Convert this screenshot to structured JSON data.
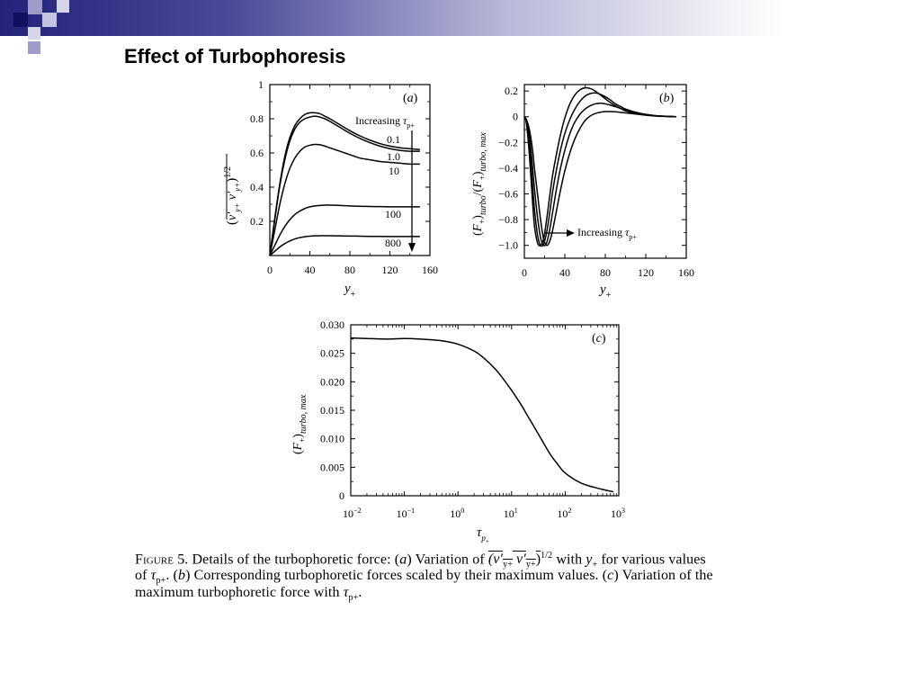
{
  "slide": {
    "title": "Effect of Turbophoresis"
  },
  "caption": {
    "figure_label": "Figure 5.",
    "line1_a": "Details of the turbophoretic force: (",
    "line1_b": "a",
    "line1_c": ") Variation of ",
    "line1_d": "(v′",
    "line1_e": "y+",
    "line1_f": " v′",
    "line1_g": "y+",
    "line1_h": ")",
    "line1_i": "1/2",
    "line1_j": " with ",
    "line1_k": "y",
    "line1_l": "+",
    "line1_m": " for various values",
    "line2_a": "of ",
    "line2_b": "τ",
    "line2_c": "p+",
    "line2_d": ". (",
    "line2_e": "b",
    "line2_f": ") Corresponding turbophoretic forces scaled by their maximum values. (",
    "line2_g": "c",
    "line2_h": ") Variation of the",
    "line3_a": "maximum turbophoretic force with ",
    "line3_b": "τ",
    "line3_c": "p+",
    "line3_d": "."
  },
  "chart_data": [
    {
      "type": "line",
      "panel": "(a)",
      "xlabel": "y+",
      "ylabel": "(v′y+ v′y+)^1/2",
      "xlim": [
        0,
        160
      ],
      "ylim": [
        0,
        1.0
      ],
      "xticks": [
        0,
        40,
        80,
        120,
        160
      ],
      "yticks": [
        0.2,
        0.4,
        0.6,
        0.8,
        1.0
      ],
      "x": [
        0,
        5,
        10,
        15,
        20,
        25,
        30,
        35,
        40,
        45,
        50,
        55,
        60,
        70,
        80,
        90,
        100,
        110,
        120,
        130,
        140,
        150
      ],
      "series": [
        {
          "name": "0.1",
          "values": [
            0,
            0.22,
            0.42,
            0.58,
            0.69,
            0.76,
            0.8,
            0.825,
            0.835,
            0.835,
            0.83,
            0.815,
            0.8,
            0.765,
            0.73,
            0.7,
            0.675,
            0.655,
            0.64,
            0.63,
            0.625,
            0.62
          ]
        },
        {
          "name": "1.0",
          "values": [
            0,
            0.21,
            0.41,
            0.56,
            0.67,
            0.74,
            0.78,
            0.8,
            0.81,
            0.815,
            0.81,
            0.8,
            0.785,
            0.75,
            0.715,
            0.685,
            0.66,
            0.64,
            0.625,
            0.615,
            0.61,
            0.61
          ]
        },
        {
          "name": "10",
          "values": [
            0,
            0.15,
            0.3,
            0.42,
            0.51,
            0.57,
            0.61,
            0.635,
            0.645,
            0.65,
            0.648,
            0.64,
            0.63,
            0.61,
            0.59,
            0.57,
            0.56,
            0.55,
            0.545,
            0.54,
            0.535,
            0.535
          ]
        },
        {
          "name": "100",
          "values": [
            0,
            0.06,
            0.12,
            0.17,
            0.21,
            0.24,
            0.26,
            0.275,
            0.285,
            0.29,
            0.293,
            0.295,
            0.295,
            0.293,
            0.29,
            0.288,
            0.287,
            0.286,
            0.285,
            0.285,
            0.285,
            0.285
          ]
        },
        {
          "name": "800",
          "values": [
            0,
            0.025,
            0.05,
            0.07,
            0.085,
            0.097,
            0.105,
            0.11,
            0.113,
            0.115,
            0.116,
            0.116,
            0.116,
            0.115,
            0.114,
            0.113,
            0.112,
            0.112,
            0.111,
            0.111,
            0.111,
            0.111
          ]
        }
      ],
      "annotation": "Increasing τp+",
      "annotation_symbol": "τ",
      "annotation_sub": "p+",
      "annotation_text": "Increasing "
    },
    {
      "type": "line",
      "panel": "(b)",
      "xlabel": "y+",
      "ylabel": "(F+)turbo/(F+)turbo, max",
      "xlim": [
        0,
        160
      ],
      "ylim": [
        -1.1,
        0.25
      ],
      "xticks": [
        0,
        40,
        80,
        120,
        160
      ],
      "yticks": [
        0.2,
        0,
        -0.2,
        -0.4,
        -0.6,
        -0.8,
        -1.0
      ],
      "ytick_labels": [
        "0.2",
        "0",
        "−0.2",
        "−0.4",
        "−0.6",
        "−0.8",
        "−1.0"
      ],
      "x": [
        0,
        2,
        5,
        8,
        10,
        13,
        16,
        19,
        22,
        25,
        28,
        32,
        36,
        40,
        45,
        50,
        55,
        60,
        65,
        70,
        75,
        80,
        85,
        90,
        95,
        100,
        110,
        120,
        130,
        140,
        150
      ],
      "series": [
        {
          "values": [
            0,
            -0.05,
            -0.3,
            -0.65,
            -0.85,
            -0.98,
            -1.0,
            -0.95,
            -0.8,
            -0.62,
            -0.45,
            -0.28,
            -0.13,
            -0.01,
            0.1,
            0.17,
            0.21,
            0.225,
            0.22,
            0.2,
            0.17,
            0.14,
            0.11,
            0.085,
            0.065,
            0.045,
            0.025,
            0.012,
            0.005,
            0.002,
            0
          ]
        },
        {
          "values": [
            0,
            -0.04,
            -0.22,
            -0.52,
            -0.72,
            -0.92,
            -1.0,
            -0.99,
            -0.9,
            -0.75,
            -0.58,
            -0.4,
            -0.25,
            -0.13,
            -0.02,
            0.06,
            0.12,
            0.16,
            0.18,
            0.185,
            0.175,
            0.155,
            0.13,
            0.1,
            0.08,
            0.06,
            0.035,
            0.018,
            0.008,
            0.003,
            0
          ]
        },
        {
          "values": [
            0,
            -0.03,
            -0.15,
            -0.38,
            -0.56,
            -0.78,
            -0.94,
            -1.0,
            -0.98,
            -0.88,
            -0.74,
            -0.55,
            -0.39,
            -0.26,
            -0.13,
            -0.04,
            0.02,
            0.06,
            0.085,
            0.1,
            0.105,
            0.1,
            0.09,
            0.078,
            0.065,
            0.052,
            0.032,
            0.018,
            0.008,
            0.003,
            0
          ]
        },
        {
          "values": [
            0,
            -0.02,
            -0.1,
            -0.25,
            -0.4,
            -0.6,
            -0.8,
            -0.95,
            -1.0,
            -0.97,
            -0.88,
            -0.72,
            -0.56,
            -0.42,
            -0.28,
            -0.17,
            -0.09,
            -0.03,
            0.005,
            0.025,
            0.035,
            0.04,
            0.04,
            0.038,
            0.034,
            0.03,
            0.021,
            0.013,
            0.007,
            0.003,
            0
          ]
        }
      ],
      "annotation": "Increasing τp+",
      "annotation_symbol": "τ",
      "annotation_sub": "p+",
      "annotation_text": "Increasing "
    },
    {
      "type": "line",
      "panel": "(c)",
      "xlabel": "τp+",
      "ylabel": "(F+)turbo, max",
      "xscale": "log",
      "xlim": [
        0.01,
        1000
      ],
      "ylim": [
        0,
        0.03
      ],
      "xticks": [
        0.01,
        0.1,
        1,
        10,
        100,
        1000
      ],
      "xtick_labels": [
        [
          "10",
          "−2"
        ],
        [
          "10",
          "−1"
        ],
        [
          "10",
          "0"
        ],
        [
          "10",
          "1"
        ],
        [
          "10",
          "2"
        ],
        [
          "10",
          "3"
        ]
      ],
      "yticks": [
        0,
        0.005,
        0.01,
        0.015,
        0.02,
        0.025,
        0.03
      ],
      "ytick_labels": [
        "0",
        "0.005",
        "0.010",
        "0.015",
        "0.020",
        "0.025",
        "0.030"
      ],
      "x": [
        0.01,
        0.02,
        0.05,
        0.1,
        0.2,
        0.5,
        1,
        2,
        3,
        5,
        7,
        10,
        15,
        20,
        30,
        50,
        70,
        100,
        200,
        500,
        800
      ],
      "series": [
        {
          "values": [
            0.0277,
            0.0276,
            0.0275,
            0.0276,
            0.0275,
            0.0272,
            0.0266,
            0.0254,
            0.0242,
            0.0222,
            0.0205,
            0.0185,
            0.016,
            0.014,
            0.0112,
            0.0076,
            0.0057,
            0.004,
            0.0022,
            0.0011,
            0.0007
          ]
        }
      ]
    }
  ]
}
